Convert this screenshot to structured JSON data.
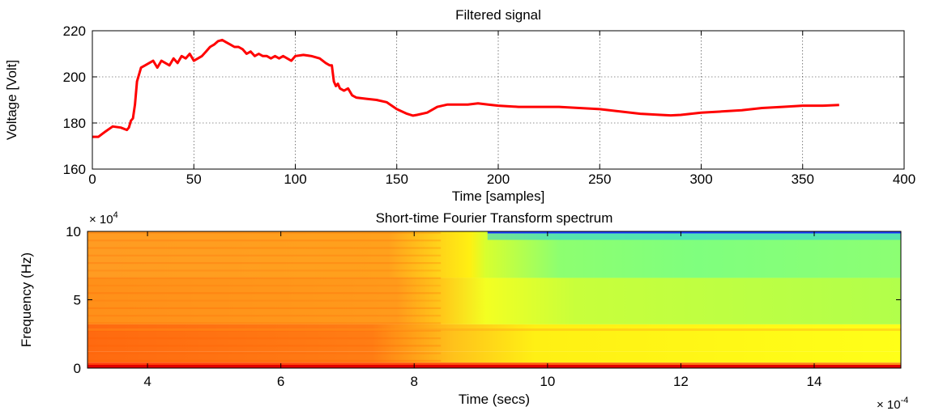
{
  "chart_data": [
    {
      "type": "line",
      "title": "Filtered signal",
      "xlabel": "Time [samples]",
      "ylabel": "Voltage [Volt]",
      "xlim": [
        0,
        400
      ],
      "ylim": [
        160,
        220
      ],
      "xticks": [
        0,
        50,
        100,
        150,
        200,
        250,
        300,
        350,
        400
      ],
      "yticks": [
        160,
        180,
        200,
        220
      ],
      "grid": true,
      "series": [
        {
          "color": "#ff0000",
          "x": [
            0,
            3,
            6,
            10,
            14,
            17,
            18,
            19,
            20,
            21,
            22,
            24,
            26,
            28,
            30,
            32,
            34,
            36,
            38,
            40,
            42,
            44,
            46,
            48,
            50,
            52,
            54,
            56,
            58,
            60,
            62,
            64,
            66,
            68,
            70,
            72,
            74,
            76,
            78,
            80,
            82,
            84,
            86,
            88,
            90,
            92,
            94,
            96,
            98,
            100,
            104,
            108,
            112,
            115,
            117,
            118,
            119,
            120,
            121,
            122,
            124,
            126,
            128,
            130,
            135,
            140,
            145,
            150,
            155,
            158,
            160,
            165,
            170,
            175,
            180,
            185,
            190,
            195,
            200,
            210,
            220,
            230,
            240,
            250,
            260,
            270,
            280,
            285,
            290,
            295,
            300,
            310,
            320,
            330,
            340,
            350,
            360,
            368
          ],
          "y": [
            174,
            174,
            176,
            178.5,
            178,
            177,
            178,
            181,
            182,
            188,
            198,
            204,
            205,
            206,
            207,
            204,
            207,
            206,
            205,
            208,
            206,
            209,
            208,
            210,
            207,
            208,
            209,
            211,
            213,
            214,
            215.5,
            216,
            215,
            214,
            213,
            213,
            212,
            210,
            211,
            209,
            210,
            209,
            209,
            208,
            209,
            208,
            209,
            208,
            207,
            209,
            209.5,
            209,
            208,
            206,
            205,
            205,
            198,
            196,
            197,
            195,
            194,
            195,
            192,
            191,
            190.5,
            190,
            189,
            186,
            184,
            183.2,
            183.5,
            184.5,
            187,
            188,
            188,
            188,
            188.5,
            188,
            187.5,
            187,
            187,
            187,
            186.5,
            186,
            185,
            184,
            183.5,
            183.3,
            183.5,
            184,
            184.5,
            185,
            185.5,
            186.5,
            187,
            187.5,
            187.5,
            187.8
          ]
        }
      ]
    },
    {
      "type": "heatmap",
      "title": "Short-time Fourier Transform spectrum",
      "xlabel": "Time (secs)",
      "ylabel": "Frequency (Hz)",
      "x_multiplier_label": "× 10",
      "x_multiplier_exp": "-4",
      "y_multiplier_label": "× 10",
      "y_multiplier_exp": "4",
      "xlim": [
        3.1,
        15.3
      ],
      "ylim": [
        0,
        10
      ],
      "xticks": [
        4,
        6,
        8,
        10,
        12,
        14
      ],
      "yticks": [
        0,
        5,
        10
      ],
      "colormap": "jet",
      "regions": [
        {
          "time_range": [
            3.1,
            7.8
          ],
          "level": "high",
          "color": "#ff9f1f"
        },
        {
          "time_range": [
            7.8,
            9.1
          ],
          "level": "transition",
          "color": "#ffd21a"
        },
        {
          "time_range": [
            9.1,
            15.3
          ],
          "level": "low",
          "color": "#c9ff3a"
        }
      ]
    }
  ]
}
